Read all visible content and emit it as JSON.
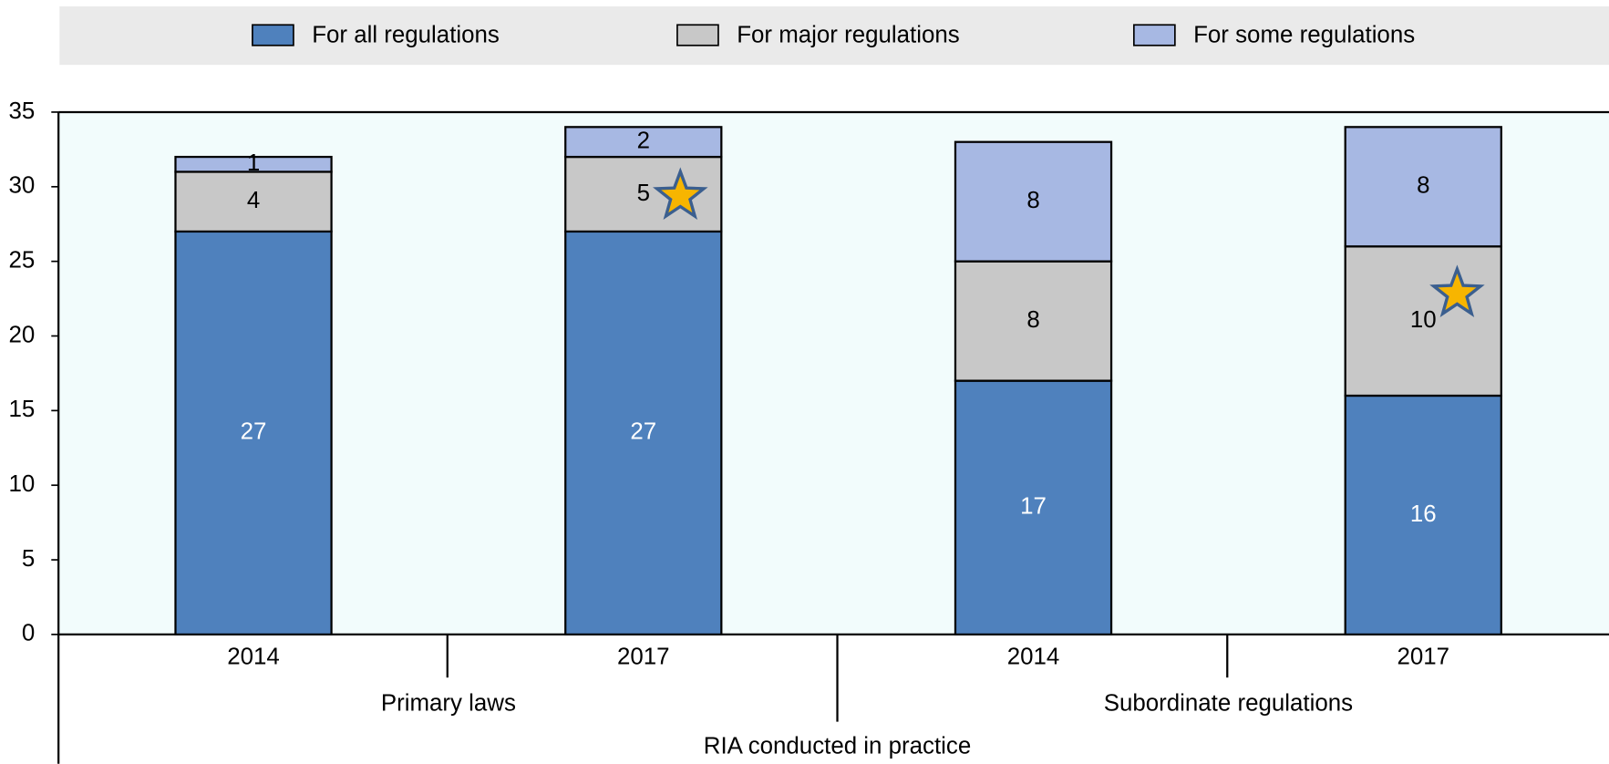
{
  "chart_data": {
    "type": "stacked_bar",
    "categories": [
      "2014",
      "2017",
      "2014",
      "2017"
    ],
    "group_labels": [
      "Primary laws",
      "Subordinate regulations"
    ],
    "xlabel": "RIA conducted in practice",
    "series": [
      {
        "name": "For all regulations",
        "color": "#4f81bd",
        "values": [
          27,
          27,
          17,
          16
        ]
      },
      {
        "name": "For major regulations",
        "color": "#c8c8c8",
        "values": [
          4,
          5,
          8,
          10
        ]
      },
      {
        "name": "For some regulations",
        "color": "#a7b8e3",
        "values": [
          1,
          2,
          8,
          8
        ]
      }
    ],
    "ylim": [
      0,
      35
    ],
    "yticks": [
      0,
      5,
      10,
      15,
      20,
      25,
      30,
      35
    ]
  }
}
